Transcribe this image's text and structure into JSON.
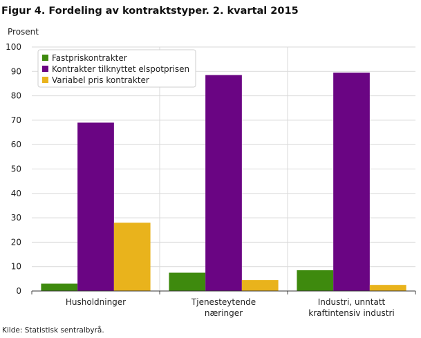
{
  "chart_data": {
    "type": "bar",
    "title": "Figur 4. Fordeling av kontraktstyper. 2. kvartal 2015",
    "ylabel": "Prosent",
    "xlabel": "",
    "ylim": [
      0,
      100
    ],
    "yticks": [
      0,
      10,
      20,
      30,
      40,
      50,
      60,
      70,
      80,
      90,
      100
    ],
    "grid": true,
    "legend_position": "top-left",
    "categories": [
      [
        "Husholdninger"
      ],
      [
        "Tjenesteytende",
        "næringer"
      ],
      [
        "Industri, unntatt",
        "kraftintensiv industri"
      ]
    ],
    "series": [
      {
        "name": "Fastpriskontrakter",
        "color": "#3e8a0e",
        "values": [
          3,
          7.5,
          8.5
        ]
      },
      {
        "name": "Kontrakter tilknyttet elspotprisen",
        "color": "#6a0583",
        "values": [
          69,
          88.5,
          89.5
        ]
      },
      {
        "name": "Variabel pris kontrakter",
        "color": "#e9b31c",
        "values": [
          28,
          4.5,
          2.5
        ]
      }
    ]
  },
  "footer": {
    "source": "Kilde: Statistisk sentralbyrå."
  }
}
